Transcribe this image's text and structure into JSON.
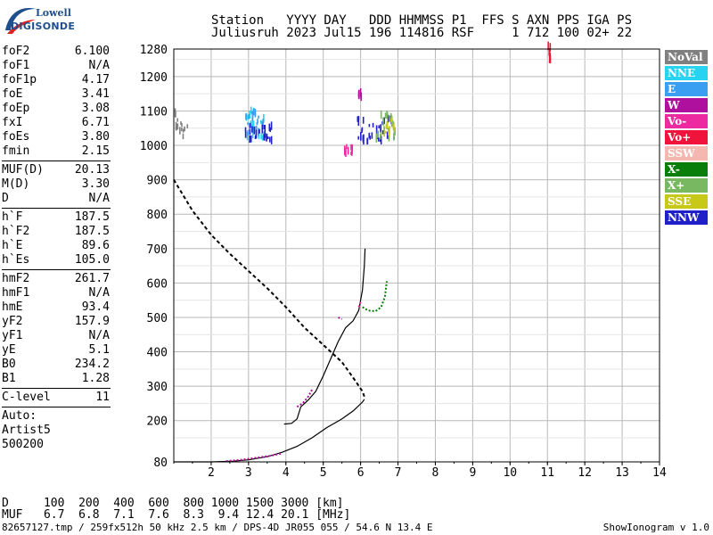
{
  "logo": {
    "top": "Lowell",
    "bottom": "DIGISONDE"
  },
  "header": {
    "line1": "Station   YYYY DAY   DDD HHMMSS P1  FFS S AXN PPS IGA PS",
    "line2": "Juliusruh 2023 Jul15 196 114816 RSF     1 712 100 02+ 22"
  },
  "params_group1": [
    {
      "label": "foF2",
      "value": "6.100"
    },
    {
      "label": "foF1",
      "value": "N/A"
    },
    {
      "label": "foF1p",
      "value": "4.17"
    },
    {
      "label": "foE",
      "value": "3.41"
    },
    {
      "label": "foEp",
      "value": "3.08"
    },
    {
      "label": "fxI",
      "value": "6.71"
    },
    {
      "label": "foEs",
      "value": "3.80"
    },
    {
      "label": "fmin",
      "value": "2.15"
    }
  ],
  "params_group2": [
    {
      "label": "MUF(D)",
      "value": "20.13"
    },
    {
      "label": "M(D)",
      "value": "3.30"
    },
    {
      "label": "D",
      "value": "N/A"
    }
  ],
  "params_group3": [
    {
      "label": "h`F",
      "value": "187.5"
    },
    {
      "label": "h`F2",
      "value": "187.5"
    },
    {
      "label": "h`E",
      "value": "89.6"
    },
    {
      "label": "h`Es",
      "value": "105.0"
    }
  ],
  "params_group4": [
    {
      "label": "hmF2",
      "value": "261.7"
    },
    {
      "label": "hmF1",
      "value": "N/A"
    },
    {
      "label": "hmE",
      "value": "93.4"
    },
    {
      "label": "yF2",
      "value": "157.9"
    },
    {
      "label": "yF1",
      "value": "N/A"
    },
    {
      "label": "yE",
      "value": "5.1"
    },
    {
      "label": "B0",
      "value": "234.2"
    },
    {
      "label": "B1",
      "value": "1.28"
    }
  ],
  "params_group5": [
    {
      "label": "C-level",
      "value": "11"
    }
  ],
  "auto": [
    "Auto:",
    "Artist5",
    "500200"
  ],
  "legend": [
    {
      "label": "NoVal",
      "color": "#808080"
    },
    {
      "label": "NNE",
      "color": "#27d3f0"
    },
    {
      "label": "E",
      "color": "#3a9ff0"
    },
    {
      "label": "W",
      "color": "#b0109e"
    },
    {
      "label": "Vo-",
      "color": "#ee2aa0"
    },
    {
      "label": "Vo+",
      "color": "#f0143c"
    },
    {
      "label": "SSW",
      "color": "#f4b8b0"
    },
    {
      "label": "X-",
      "color": "#0a7e0a"
    },
    {
      "label": "X+",
      "color": "#78b860"
    },
    {
      "label": "SSE",
      "color": "#c8c818"
    },
    {
      "label": "NNW",
      "color": "#2020c8"
    }
  ],
  "bottom": {
    "d_line": "D     100  200  400  600  800 1000 1500 3000 [km]",
    "muf_line": "MUF   6.7  6.8  7.1  7.6  8.3  9.4 12.4 20.1 [MHz]"
  },
  "footer": {
    "left": "82657127.tmp / 259fx512h 50 kHz 2.5 km / DPS-4D JR055 055 / 54.6 N 13.4 E",
    "right": "ShowIonogram v 1.0"
  },
  "chart_data": {
    "type": "scatter",
    "x_ticks": [
      2,
      3,
      4,
      5,
      6,
      7,
      8,
      9,
      10,
      11,
      12,
      13,
      14
    ],
    "y_ticks": [
      80,
      200,
      300,
      400,
      500,
      600,
      700,
      800,
      900,
      1000,
      1100,
      1200,
      1280
    ],
    "xlim": [
      1,
      14
    ],
    "ylim": [
      80,
      1280
    ],
    "grid": true,
    "series": [
      {
        "color": "#000000",
        "style": "solid",
        "points": [
          [
            1,
            80
          ],
          [
            2,
            80
          ],
          [
            2.6,
            82
          ],
          [
            3,
            86
          ],
          [
            3.5,
            95
          ],
          [
            3.9,
            108
          ],
          [
            4.3,
            125
          ],
          [
            4.7,
            150
          ],
          [
            5.1,
            180
          ],
          [
            5.5,
            205
          ],
          [
            5.8,
            228
          ],
          [
            6.05,
            254
          ],
          [
            6.1,
            262
          ]
        ]
      },
      {
        "color": "#000000",
        "style": "solid",
        "points": [
          [
            3.95,
            190
          ],
          [
            4.15,
            192
          ],
          [
            4.3,
            205
          ],
          [
            4.4,
            240
          ],
          [
            4.6,
            260
          ],
          [
            4.8,
            285
          ],
          [
            5.0,
            330
          ],
          [
            5.2,
            380
          ],
          [
            5.4,
            430
          ],
          [
            5.6,
            470
          ],
          [
            5.8,
            490
          ],
          [
            5.95,
            520
          ],
          [
            6.05,
            580
          ],
          [
            6.1,
            650
          ],
          [
            6.12,
            700
          ]
        ]
      },
      {
        "color": "#000000",
        "style": "dashed",
        "points": [
          [
            1,
            900
          ],
          [
            1.5,
            810
          ],
          [
            2,
            740
          ],
          [
            2.5,
            685
          ],
          [
            3,
            635
          ],
          [
            3.5,
            585
          ],
          [
            4,
            530
          ],
          [
            4.5,
            470
          ],
          [
            5,
            420
          ],
          [
            5.5,
            370
          ],
          [
            5.8,
            325
          ],
          [
            6.05,
            285
          ],
          [
            6.1,
            270
          ]
        ]
      },
      {
        "color": "#0a7e0a",
        "style": "dotted",
        "points": [
          [
            6.05,
            530
          ],
          [
            6.2,
            520
          ],
          [
            6.4,
            518
          ],
          [
            6.55,
            530
          ],
          [
            6.65,
            560
          ],
          [
            6.7,
            605
          ]
        ]
      },
      {
        "color": "#b0109e",
        "style": "dotted",
        "points": [
          [
            2.4,
            82
          ],
          [
            2.8,
            86
          ],
          [
            3.2,
            92
          ],
          [
            3.6,
            98
          ],
          [
            3.9,
            105
          ]
        ]
      },
      {
        "color": "#b0109e",
        "style": "dotted",
        "points": [
          [
            4.3,
            240
          ],
          [
            4.45,
            250
          ],
          [
            4.6,
            270
          ],
          [
            4.7,
            290
          ]
        ]
      },
      {
        "color": "#b0109e",
        "style": "dotted",
        "points": [
          [
            5.4,
            500
          ],
          [
            5.5,
            495
          ]
        ]
      },
      {
        "color": "#ee2aa0",
        "style": "dotted",
        "points": [
          [
            5.95,
            530
          ],
          [
            6.0,
            545
          ]
        ]
      }
    ],
    "clusters": [
      {
        "label": "NoVal",
        "color": "#808080",
        "x": [
          1,
          1.35
        ],
        "y": [
          1020,
          1100
        ]
      },
      {
        "label": "NNE",
        "color": "#27d3f0",
        "x": [
          2.9,
          3.4
        ],
        "y": [
          1020,
          1105
        ]
      },
      {
        "label": "E",
        "color": "#3a9ff0",
        "x": [
          2.9,
          3.4
        ],
        "y": [
          1025,
          1100
        ]
      },
      {
        "label": "NNW",
        "color": "#2020c8",
        "x": [
          2.9,
          3.6
        ],
        "y": [
          1015,
          1060
        ]
      },
      {
        "label": "W",
        "color": "#b0109e",
        "x": [
          5.9,
          6.0
        ],
        "y": [
          1140,
          1155
        ]
      },
      {
        "label": "NNW",
        "color": "#2020c8",
        "x": [
          5.9,
          6.9
        ],
        "y": [
          1010,
          1080
        ]
      },
      {
        "label": "X+",
        "color": "#78b860",
        "x": [
          6.4,
          6.9
        ],
        "y": [
          1020,
          1090
        ]
      },
      {
        "label": "SSE",
        "color": "#c8c818",
        "x": [
          6.6,
          6.9
        ],
        "y": [
          1030,
          1080
        ]
      },
      {
        "label": "Vo+",
        "color": "#f0143c",
        "x": [
          11.0,
          11.1
        ],
        "y": [
          1245,
          1290
        ]
      },
      {
        "label": "Vo-",
        "color": "#ee2aa0",
        "x": [
          5.5,
          5.8
        ],
        "y": [
          975,
          1000
        ]
      }
    ]
  }
}
